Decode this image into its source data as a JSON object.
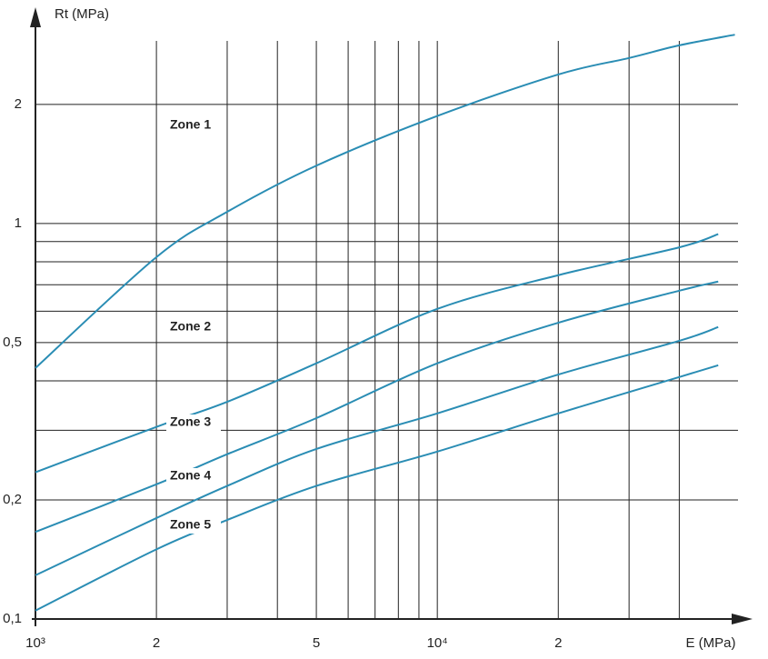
{
  "chart_data": {
    "type": "line",
    "x_label": "E (MPa)",
    "y_label": "Rt (MPa)",
    "xscale": "log",
    "yscale": "log",
    "grid": true,
    "xlim": [
      1000,
      56000
    ],
    "ylim": [
      0.1,
      3.2
    ],
    "xticks": [
      {
        "value": 1000,
        "label": "10³"
      },
      2,
      5,
      {
        "value": 10000,
        "label": "10⁴"
      },
      2
    ],
    "xtick_values": [
      1000,
      2000,
      5000,
      10000,
      20000
    ],
    "xgrid": [
      2000,
      3000,
      4000,
      5000,
      6000,
      7000,
      8000,
      9000,
      10000,
      20000,
      30000,
      40000
    ],
    "yticks": [
      {
        "value": 0.1,
        "label": "0,1"
      },
      {
        "value": 0.2,
        "label": "0,2"
      },
      {
        "value": 0.5,
        "label": "0,5"
      },
      1,
      2
    ],
    "ygrid": [
      0.2,
      0.3,
      0.4,
      0.5,
      0.6,
      0.7,
      0.8,
      0.9,
      1,
      2
    ],
    "series": [
      {
        "name": "Zone 1",
        "color": "#2a8db4",
        "x": [
          1000,
          2000,
          3000,
          5000,
          10000,
          20000,
          30000,
          40000,
          55000
        ],
        "values": [
          0.431,
          0.822,
          1.07,
          1.4,
          1.87,
          2.38,
          2.62,
          2.82,
          3.0
        ]
      },
      {
        "name": "Zone 2",
        "color": "#2a8db4",
        "x": [
          1000,
          2000,
          3000,
          5000,
          10000,
          20000,
          40000,
          50000
        ],
        "values": [
          0.235,
          0.306,
          0.354,
          0.443,
          0.608,
          0.74,
          0.87,
          0.94
        ]
      },
      {
        "name": "Zone 3",
        "color": "#2a8db4",
        "x": [
          1000,
          2000,
          3000,
          5000,
          10000,
          20000,
          40000,
          50000
        ],
        "values": [
          0.166,
          0.219,
          0.261,
          0.322,
          0.443,
          0.561,
          0.676,
          0.713
        ]
      },
      {
        "name": "Zone 4",
        "color": "#2a8db4",
        "x": [
          1000,
          2000,
          3000,
          5000,
          10000,
          20000,
          40000,
          50000
        ],
        "values": [
          0.129,
          0.18,
          0.217,
          0.269,
          0.331,
          0.415,
          0.505,
          0.547
        ]
      },
      {
        "name": "Zone 5",
        "color": "#2a8db4",
        "x": [
          1000,
          2000,
          3000,
          5000,
          10000,
          20000,
          40000,
          50000
        ],
        "values": [
          0.105,
          0.15,
          0.178,
          0.217,
          0.265,
          0.331,
          0.409,
          0.438
        ]
      }
    ]
  }
}
